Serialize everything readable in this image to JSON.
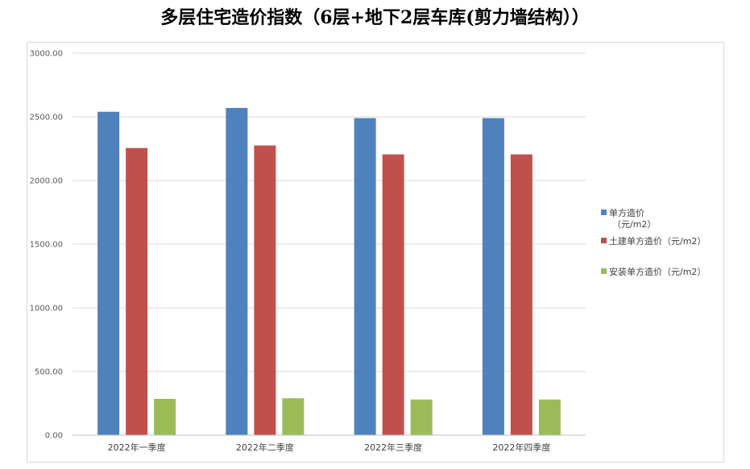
{
  "title": "多层住宅造价指数（6层+地下2层车库(剪力墙结构））",
  "chart_data": {
    "type": "bar",
    "categories": [
      "2022年一季度",
      "2022年二季度",
      "2022年三季度",
      "2022年四季度"
    ],
    "series": [
      {
        "name": "单方造价（元/m2）",
        "legend_lines": [
          "单方造价",
          "（元/m2）"
        ],
        "color": "#4F81BD",
        "values": [
          2540,
          2570,
          2490,
          2490
        ]
      },
      {
        "name": "土建单方造价（元/m2）",
        "legend_lines": [
          "土建单方造价（元/m2）"
        ],
        "color": "#C0504D",
        "values": [
          2255,
          2275,
          2205,
          2205
        ]
      },
      {
        "name": "安装单方造价（元/m2）",
        "legend_lines": [
          "安装单方造价（元/m2）"
        ],
        "color": "#9BBB59",
        "values": [
          285,
          290,
          280,
          280
        ]
      }
    ],
    "yticks": [
      "0.00",
      "500.00",
      "1000.00",
      "1500.00",
      "2000.00",
      "2500.00",
      "3000.00"
    ],
    "ylim": [
      0,
      3000
    ],
    "grid": true,
    "legend": "right"
  }
}
